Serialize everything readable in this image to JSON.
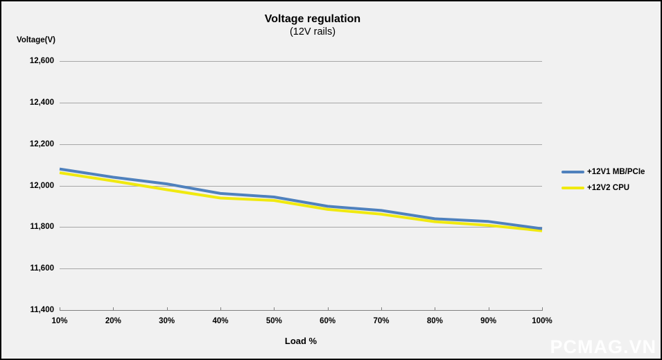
{
  "title": {
    "main": "Voltage regulation",
    "sub": "(12V rails)"
  },
  "y_axis": {
    "label": "Voltage(V)",
    "ticks": [
      "12,600",
      "12,400",
      "12,200",
      "12,000",
      "11,800",
      "11,600",
      "11,400"
    ],
    "min": 11400,
    "max": 12600,
    "step": 200
  },
  "x_axis": {
    "label": "Load %",
    "ticks": [
      "10%",
      "20%",
      "30%",
      "40%",
      "50%",
      "60%",
      "70%",
      "80%",
      "90%",
      "100%"
    ]
  },
  "legend": [
    {
      "label": "+12V1 MB/PCIe",
      "color": "#4f81bd"
    },
    {
      "label": "+12V2 CPU",
      "color": "#f0e90f"
    }
  ],
  "watermark": "PCMAG.VN",
  "colors": {
    "background": "#f1f1f1",
    "frame": "#000000",
    "gridline": "#a6a6a6",
    "axis": "#7f7f7f",
    "series_blue": "#4f81bd",
    "series_yellow": "#f0e90f",
    "watermark_text": "#ffffff"
  },
  "chart_data": {
    "type": "line",
    "x": [
      10,
      20,
      30,
      40,
      50,
      60,
      70,
      80,
      90,
      100
    ],
    "x_unit": "%",
    "series": [
      {
        "name": "+12V1 MB/PCIe",
        "color": "#4f81bd",
        "values": [
          12080,
          12040,
          12008,
          11962,
          11945,
          11900,
          11880,
          11840,
          11827,
          11792
        ]
      },
      {
        "name": "+12V2 CPU",
        "color": "#f0e90f",
        "values": [
          12062,
          12022,
          11980,
          11940,
          11928,
          11885,
          11862,
          11826,
          11808,
          11782
        ]
      }
    ],
    "title": "Voltage regulation (12V rails)",
    "xlabel": "Load %",
    "ylabel": "Voltage(V)",
    "ylim": [
      11400,
      12600
    ],
    "ytick_step": 200,
    "grid": true,
    "legend_position": "right"
  }
}
